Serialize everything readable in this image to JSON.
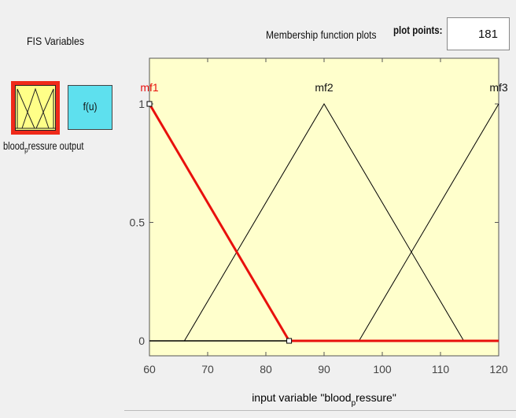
{
  "fis_variables": {
    "title": "FIS Variables",
    "labels_text": "bloodpressure output",
    "input_name_a": "blood",
    "input_name_sub": "p",
    "input_name_b": "ressure",
    "output_name": "output",
    "output_box_label": "f(u)"
  },
  "membership_panel": {
    "title": "Membership function plots",
    "plot_points_label": "plot points:",
    "plot_points_value": "181"
  },
  "colors": {
    "plot_bg": "#ffffcc",
    "selected_mf": "#e8100c",
    "mf_line": "#000000",
    "input_var_border": "#ef2a1a",
    "input_var_fill": "#ffff88",
    "output_var_fill": "#5ee0ee"
  },
  "chart_data": {
    "type": "line",
    "xlabel_a": "input variable \"blood",
    "xlabel_sub": "p",
    "xlabel_b": "ressure\"",
    "xlim": [
      60,
      120
    ],
    "ylim": [
      0,
      1
    ],
    "x_ticks": [
      "60",
      "70",
      "80",
      "90",
      "100",
      "110",
      "120"
    ],
    "y_ticks": [
      "0",
      "0.5",
      "1"
    ],
    "selected": "mf1",
    "series": [
      {
        "name": "mf1",
        "points": [
          [
            60,
            1
          ],
          [
            84,
            0
          ],
          [
            120,
            0
          ]
        ],
        "selected": true
      },
      {
        "name": "mf2",
        "points": [
          [
            66,
            0
          ],
          [
            90,
            1
          ],
          [
            114,
            0
          ]
        ],
        "selected": false
      },
      {
        "name": "mf3",
        "points": [
          [
            96,
            0
          ],
          [
            120,
            1
          ]
        ],
        "selected": false
      }
    ]
  }
}
